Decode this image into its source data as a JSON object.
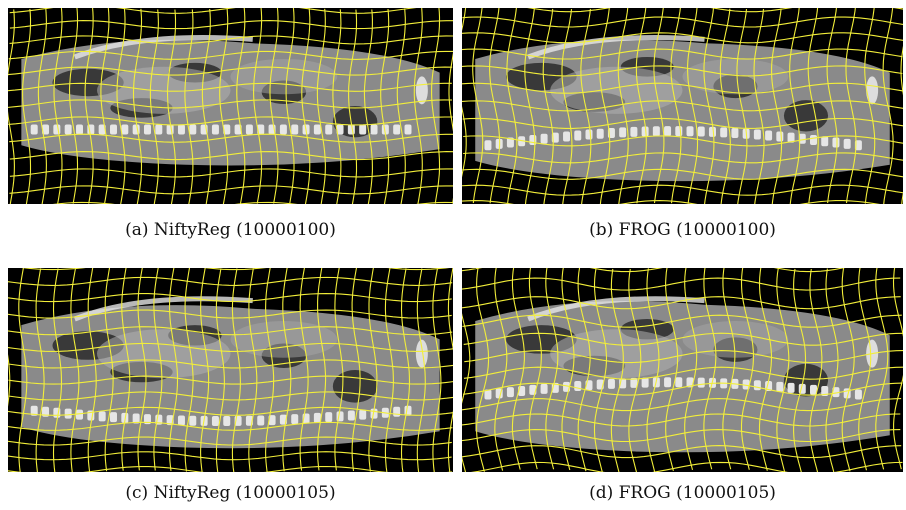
{
  "figure": {
    "panels": [
      {
        "id": "a",
        "caption": "(a) NiftyReg (10000100)",
        "method": "NiftyReg",
        "scan_id": "10000100"
      },
      {
        "id": "b",
        "caption": "(b) FROG (10000100)",
        "method": "FROG",
        "scan_id": "10000100"
      },
      {
        "id": "c",
        "caption": "(c) NiftyReg (10000105)",
        "method": "NiftyReg",
        "scan_id": "10000105"
      },
      {
        "id": "d",
        "caption": "(d) FROG (10000105)",
        "method": "FROG",
        "scan_id": "10000105"
      }
    ],
    "colors": {
      "background": "#000000",
      "grid": "#f2ee3a",
      "tissue": "#8a8a8a",
      "bone": "#e6e6e6"
    }
  }
}
